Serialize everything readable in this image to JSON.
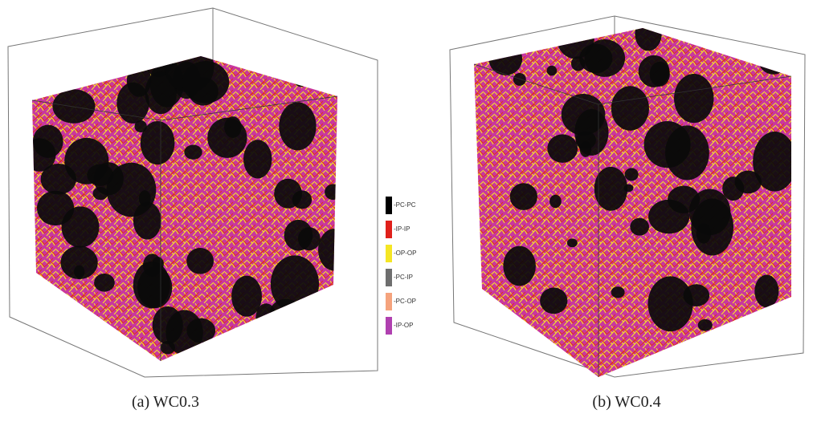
{
  "panels": [
    {
      "caption": "(a) WC0.3"
    },
    {
      "caption": "(b) WC0.4"
    }
  ],
  "legend": [
    {
      "label": "-PC-PC",
      "color": "#000000"
    },
    {
      "label": "-IP-IP",
      "color": "#e0201b"
    },
    {
      "label": "-OP-OP",
      "color": "#f5e625"
    },
    {
      "label": "-PC-IP",
      "color": "#6e6e6e"
    },
    {
      "label": "-PC-OP",
      "color": "#f5a37d"
    },
    {
      "label": "-IP-OP",
      "color": "#b040b0"
    }
  ]
}
